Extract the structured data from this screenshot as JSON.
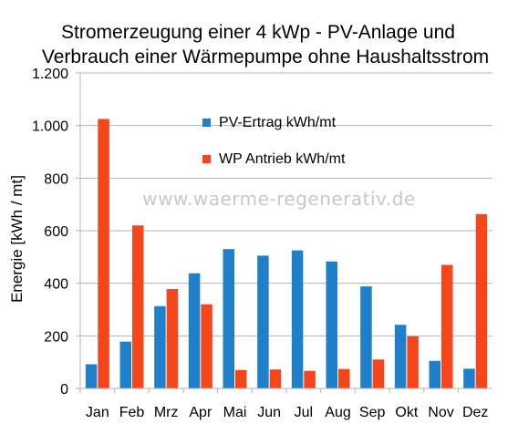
{
  "chart_data": {
    "type": "bar",
    "title_lines": [
      "Stromerzeugung einer 4 kWp - PV-Anlage und",
      "Verbrauch einer Wärmepumpe ohne Haushaltsstrom"
    ],
    "ylabel": "Energie [kWh / mt]",
    "xlabel": "",
    "ylim": [
      0,
      1200
    ],
    "yticks": [
      0,
      200,
      400,
      600,
      800,
      1000,
      1200
    ],
    "ytick_labels": [
      "0",
      "200",
      "400",
      "600",
      "800",
      "1.000",
      "1.200"
    ],
    "grid": true,
    "legend_position": "top-center",
    "categories": [
      "Jan",
      "Feb",
      "Mrz",
      "Apr",
      "Mai",
      "Jun",
      "Jul",
      "Aug",
      "Sep",
      "Okt",
      "Nov",
      "Dez"
    ],
    "series": [
      {
        "name": "PV-Ertrag kWh/mt",
        "color": "#1f7fc8",
        "values": [
          92,
          178,
          313,
          438,
          530,
          505,
          525,
          483,
          388,
          242,
          105,
          75
        ]
      },
      {
        "name": "WP Antrieb kWh/mt",
        "color": "#f5461b",
        "values": [
          1025,
          620,
          378,
          320,
          70,
          72,
          67,
          74,
          110,
          198,
          470,
          663
        ]
      }
    ],
    "watermark": "www.waerme-regenerativ.de"
  }
}
